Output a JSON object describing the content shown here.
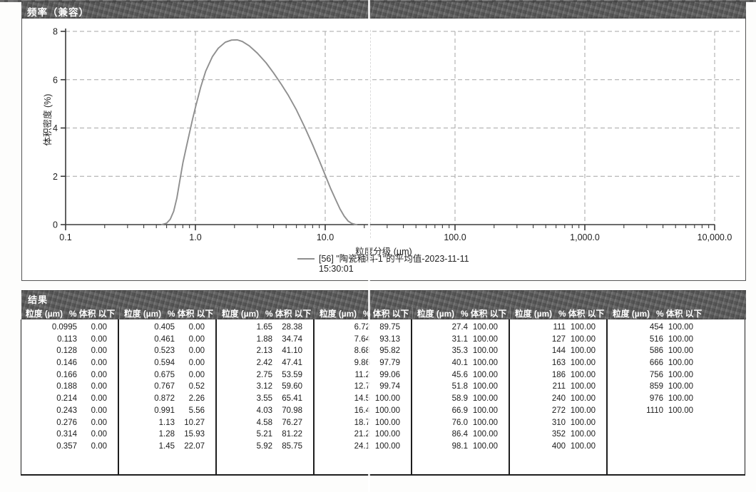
{
  "chart_panel": {
    "title": "频率（兼容）"
  },
  "chart_data": {
    "type": "line",
    "title": "频率（兼容）",
    "xlabel": "粒度分级 (µm)",
    "ylabel": "体积密度 (%)",
    "x_scale": "log",
    "xlim": [
      0.1,
      10000
    ],
    "ylim": [
      0,
      8
    ],
    "yticks": [
      0,
      2,
      4,
      6,
      8
    ],
    "xticks": [
      {
        "value": 0.1,
        "label": "0.1"
      },
      {
        "value": 1,
        "label": "1.0"
      },
      {
        "value": 10,
        "label": "10.0"
      },
      {
        "value": 100,
        "label": "100.0"
      },
      {
        "value": 1000,
        "label": "1,000.0"
      },
      {
        "value": 10000,
        "label": "10,000.0"
      }
    ],
    "grid": "dashed",
    "legend_position": "bottom",
    "legend_line1": "[56] \"陶瓷釉料-1\"的平均值-2023-11-11",
    "legend_line2": "15:30:01",
    "series": [
      {
        "name": "[56] \"陶瓷釉料-1\"的平均值-2023-11-11 15:30:01",
        "color": "#8f8f8f",
        "x": [
          0.55,
          0.6,
          0.64,
          0.68,
          0.72,
          0.76,
          0.8,
          0.85,
          0.9,
          0.95,
          1.0,
          1.1,
          1.2,
          1.35,
          1.5,
          1.7,
          1.9,
          2.1,
          2.3,
          2.6,
          3.0,
          3.5,
          4.0,
          4.6,
          5.2,
          6.0,
          7.0,
          8.0,
          9.0,
          10.0,
          11.0,
          12.0,
          13.0,
          14.0,
          15.0,
          16.0,
          17.0,
          17.5
        ],
        "y": [
          0,
          0.06,
          0.22,
          0.55,
          1.1,
          1.85,
          2.55,
          3.2,
          3.8,
          4.35,
          4.85,
          5.7,
          6.35,
          6.95,
          7.3,
          7.55,
          7.64,
          7.65,
          7.58,
          7.4,
          7.1,
          6.7,
          6.28,
          5.8,
          5.35,
          4.75,
          4.0,
          3.3,
          2.65,
          2.05,
          1.5,
          1.05,
          0.65,
          0.35,
          0.15,
          0.05,
          0.01,
          0
        ]
      }
    ]
  },
  "results": {
    "title": "结果",
    "col_header_size": "粒度 (µm)",
    "col_header_pct": "% 体积 以下",
    "groups": [
      {
        "rows": [
          [
            "0.0995",
            "0.00"
          ],
          [
            "0.113",
            "0.00"
          ],
          [
            "0.128",
            "0.00"
          ],
          [
            "0.146",
            "0.00"
          ],
          [
            "0.166",
            "0.00"
          ],
          [
            "0.188",
            "0.00"
          ],
          [
            "0.214",
            "0.00"
          ],
          [
            "0.243",
            "0.00"
          ],
          [
            "0.276",
            "0.00"
          ],
          [
            "0.314",
            "0.00"
          ],
          [
            "0.357",
            "0.00"
          ]
        ]
      },
      {
        "rows": [
          [
            "0.405",
            "0.00"
          ],
          [
            "0.461",
            "0.00"
          ],
          [
            "0.523",
            "0.00"
          ],
          [
            "0.594",
            "0.00"
          ],
          [
            "0.675",
            "0.00"
          ],
          [
            "0.767",
            "0.52"
          ],
          [
            "0.872",
            "2.26"
          ],
          [
            "0.991",
            "5.56"
          ],
          [
            "1.13",
            "10.27"
          ],
          [
            "1.28",
            "15.93"
          ],
          [
            "1.45",
            "22.07"
          ]
        ]
      },
      {
        "rows": [
          [
            "1.65",
            "28.38"
          ],
          [
            "1.88",
            "34.74"
          ],
          [
            "2.13",
            "41.10"
          ],
          [
            "2.42",
            "47.41"
          ],
          [
            "2.75",
            "53.59"
          ],
          [
            "3.12",
            "59.60"
          ],
          [
            "3.55",
            "65.41"
          ],
          [
            "4.03",
            "70.98"
          ],
          [
            "4.58",
            "76.27"
          ],
          [
            "5.21",
            "81.22"
          ],
          [
            "5.92",
            "85.75"
          ]
        ]
      },
      {
        "rows": [
          [
            "6.72",
            "89.75"
          ],
          [
            "7.64",
            "93.13"
          ],
          [
            "8.68",
            "95.82"
          ],
          [
            "9.86",
            "97.79"
          ],
          [
            "11.2",
            "99.06"
          ],
          [
            "12.7",
            "99.74"
          ],
          [
            "14.5",
            "100.00"
          ],
          [
            "16.4",
            "100.00"
          ],
          [
            "18.7",
            "100.00"
          ],
          [
            "21.2",
            "100.00"
          ],
          [
            "24.1",
            "100.00"
          ]
        ]
      },
      {
        "rows": [
          [
            "27.4",
            "100.00"
          ],
          [
            "31.1",
            "100.00"
          ],
          [
            "35.3",
            "100.00"
          ],
          [
            "40.1",
            "100.00"
          ],
          [
            "45.6",
            "100.00"
          ],
          [
            "51.8",
            "100.00"
          ],
          [
            "58.9",
            "100.00"
          ],
          [
            "66.9",
            "100.00"
          ],
          [
            "76.0",
            "100.00"
          ],
          [
            "86.4",
            "100.00"
          ],
          [
            "98.1",
            "100.00"
          ]
        ]
      },
      {
        "rows": [
          [
            "111",
            "100.00"
          ],
          [
            "127",
            "100.00"
          ],
          [
            "144",
            "100.00"
          ],
          [
            "163",
            "100.00"
          ],
          [
            "186",
            "100.00"
          ],
          [
            "211",
            "100.00"
          ],
          [
            "240",
            "100.00"
          ],
          [
            "272",
            "100.00"
          ],
          [
            "310",
            "100.00"
          ],
          [
            "352",
            "100.00"
          ],
          [
            "400",
            "100.00"
          ]
        ]
      },
      {
        "rows": [
          [
            "454",
            "100.00"
          ],
          [
            "516",
            "100.00"
          ],
          [
            "586",
            "100.00"
          ],
          [
            "666",
            "100.00"
          ],
          [
            "756",
            "100.00"
          ],
          [
            "859",
            "100.00"
          ],
          [
            "976",
            "100.00"
          ],
          [
            "1110",
            "100.00"
          ]
        ]
      }
    ]
  },
  "colors": {
    "bar_gray": "#646464",
    "curve_gray": "#8f8f8f",
    "grid_gray": "#a6a6a6",
    "border_dark": "#1e1e1e"
  }
}
